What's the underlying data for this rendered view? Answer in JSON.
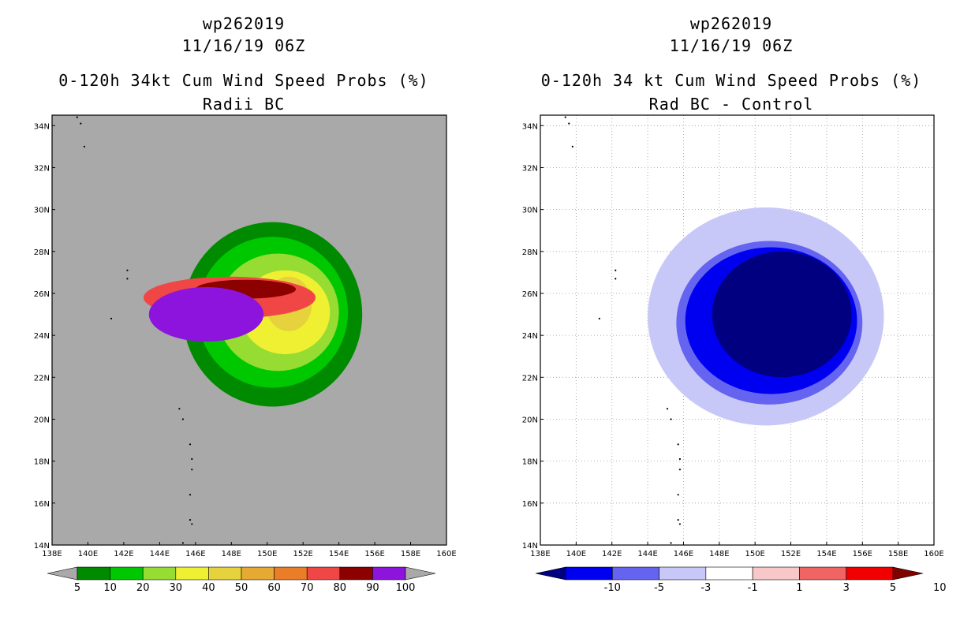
{
  "chart_data": [
    {
      "type": "filled-contour-map",
      "title_line1": "wp262019",
      "title_line2": "11/16/19 06Z",
      "title_line3": "0-120h 34kt Cum Wind Speed Probs (%)",
      "title_line4": "Radii BC",
      "xlim": [
        138,
        160
      ],
      "ylim": [
        14,
        34.5
      ],
      "xticks": [
        "138E",
        "140E",
        "142E",
        "144E",
        "146E",
        "148E",
        "150E",
        "152E",
        "154E",
        "156E",
        "158E",
        "160E"
      ],
      "yticks": [
        "14N",
        "16N",
        "18N",
        "20N",
        "22N",
        "24N",
        "26N",
        "28N",
        "30N",
        "32N",
        "34N"
      ],
      "grid": false,
      "background": "#a9a9a9",
      "colorbar_levels": [
        "5",
        "10",
        "20",
        "30",
        "40",
        "50",
        "60",
        "70",
        "80",
        "90",
        "100"
      ],
      "colorbar_colors": [
        "#008a00",
        "#00c800",
        "#96dc32",
        "#f0f032",
        "#e6d23c",
        "#e6aa32",
        "#eb7d28",
        "#f04646",
        "#8c0000",
        "#8c14dc"
      ],
      "contours": [
        {
          "level": 5,
          "color": "#008a00",
          "center": [
            150.3,
            25.0
          ],
          "rx_deg": 5.0,
          "ry_deg": 4.4
        },
        {
          "level": 10,
          "color": "#00c800",
          "center": [
            150.3,
            25.1
          ],
          "rx_deg": 4.2,
          "ry_deg": 3.6
        },
        {
          "level": 20,
          "color": "#96dc32",
          "center": [
            150.6,
            25.1
          ],
          "rx_deg": 3.4,
          "ry_deg": 2.8
        },
        {
          "level": 30,
          "color": "#f0f032",
          "center": [
            151.0,
            25.1
          ],
          "rx_deg": 2.5,
          "ry_deg": 2.0
        },
        {
          "level": 40,
          "color": "#e6d23c",
          "center": [
            151.2,
            25.5
          ],
          "rx_deg": 1.3,
          "ry_deg": 1.3
        },
        {
          "level": 50,
          "color": "#e6aa32",
          "center": [
            150.8,
            25.8
          ],
          "rx_deg": 1.1,
          "ry_deg": 0.8
        },
        {
          "level": 60,
          "color": "#eb7d28",
          "center": [
            150.7,
            26.0
          ],
          "rx_deg": 0.9,
          "ry_deg": 0.6
        },
        {
          "level": 70,
          "color": "#f04646",
          "center": [
            147.9,
            25.8
          ],
          "rx_deg": 4.8,
          "ry_deg": 1.0
        },
        {
          "level": 80,
          "color": "#8c0000",
          "center": [
            148.8,
            26.2
          ],
          "rx_deg": 2.8,
          "ry_deg": 0.45
        },
        {
          "level": 90,
          "color": "#8c14dc",
          "center": [
            146.6,
            25.0
          ],
          "rx_deg": 3.2,
          "ry_deg": 1.3
        }
      ]
    },
    {
      "type": "filled-contour-map",
      "title_line1": "wp262019",
      "title_line2": "11/16/19 06Z",
      "title_line3": "0-120h 34 kt Cum Wind Speed Probs (%)",
      "title_line4": "Rad BC - Control",
      "xlim": [
        138,
        160
      ],
      "ylim": [
        14,
        34.5
      ],
      "xticks": [
        "138E",
        "140E",
        "142E",
        "144E",
        "146E",
        "148E",
        "150E",
        "152E",
        "154E",
        "156E",
        "158E",
        "160E"
      ],
      "yticks": [
        "14N",
        "16N",
        "18N",
        "20N",
        "22N",
        "24N",
        "26N",
        "28N",
        "30N",
        "32N",
        "34N"
      ],
      "grid": true,
      "background": "#ffffff",
      "colorbar_levels": [
        "-10",
        "-5",
        "-3",
        "-1",
        "1",
        "3",
        "5",
        "10"
      ],
      "colorbar_colors": [
        "#000080",
        "#0000f0",
        "#6464f0",
        "#c8c8f8",
        "#ffffff",
        "#f8c8c8",
        "#f06464",
        "#f00000",
        "#800000"
      ],
      "contours": [
        {
          "level": -1,
          "color": "#c8c8f8",
          "center": [
            150.6,
            24.9
          ],
          "rx_deg": 6.6,
          "ry_deg": 5.2
        },
        {
          "level": -3,
          "color": "#6464f0",
          "center": [
            150.8,
            24.6
          ],
          "rx_deg": 5.2,
          "ry_deg": 3.9
        },
        {
          "level": -5,
          "color": "#0000f0",
          "center": [
            150.9,
            24.7
          ],
          "rx_deg": 4.8,
          "ry_deg": 3.5
        },
        {
          "level": -10,
          "color": "#000080",
          "center": [
            151.5,
            25.0
          ],
          "rx_deg": 3.9,
          "ry_deg": 3.0
        }
      ]
    }
  ]
}
